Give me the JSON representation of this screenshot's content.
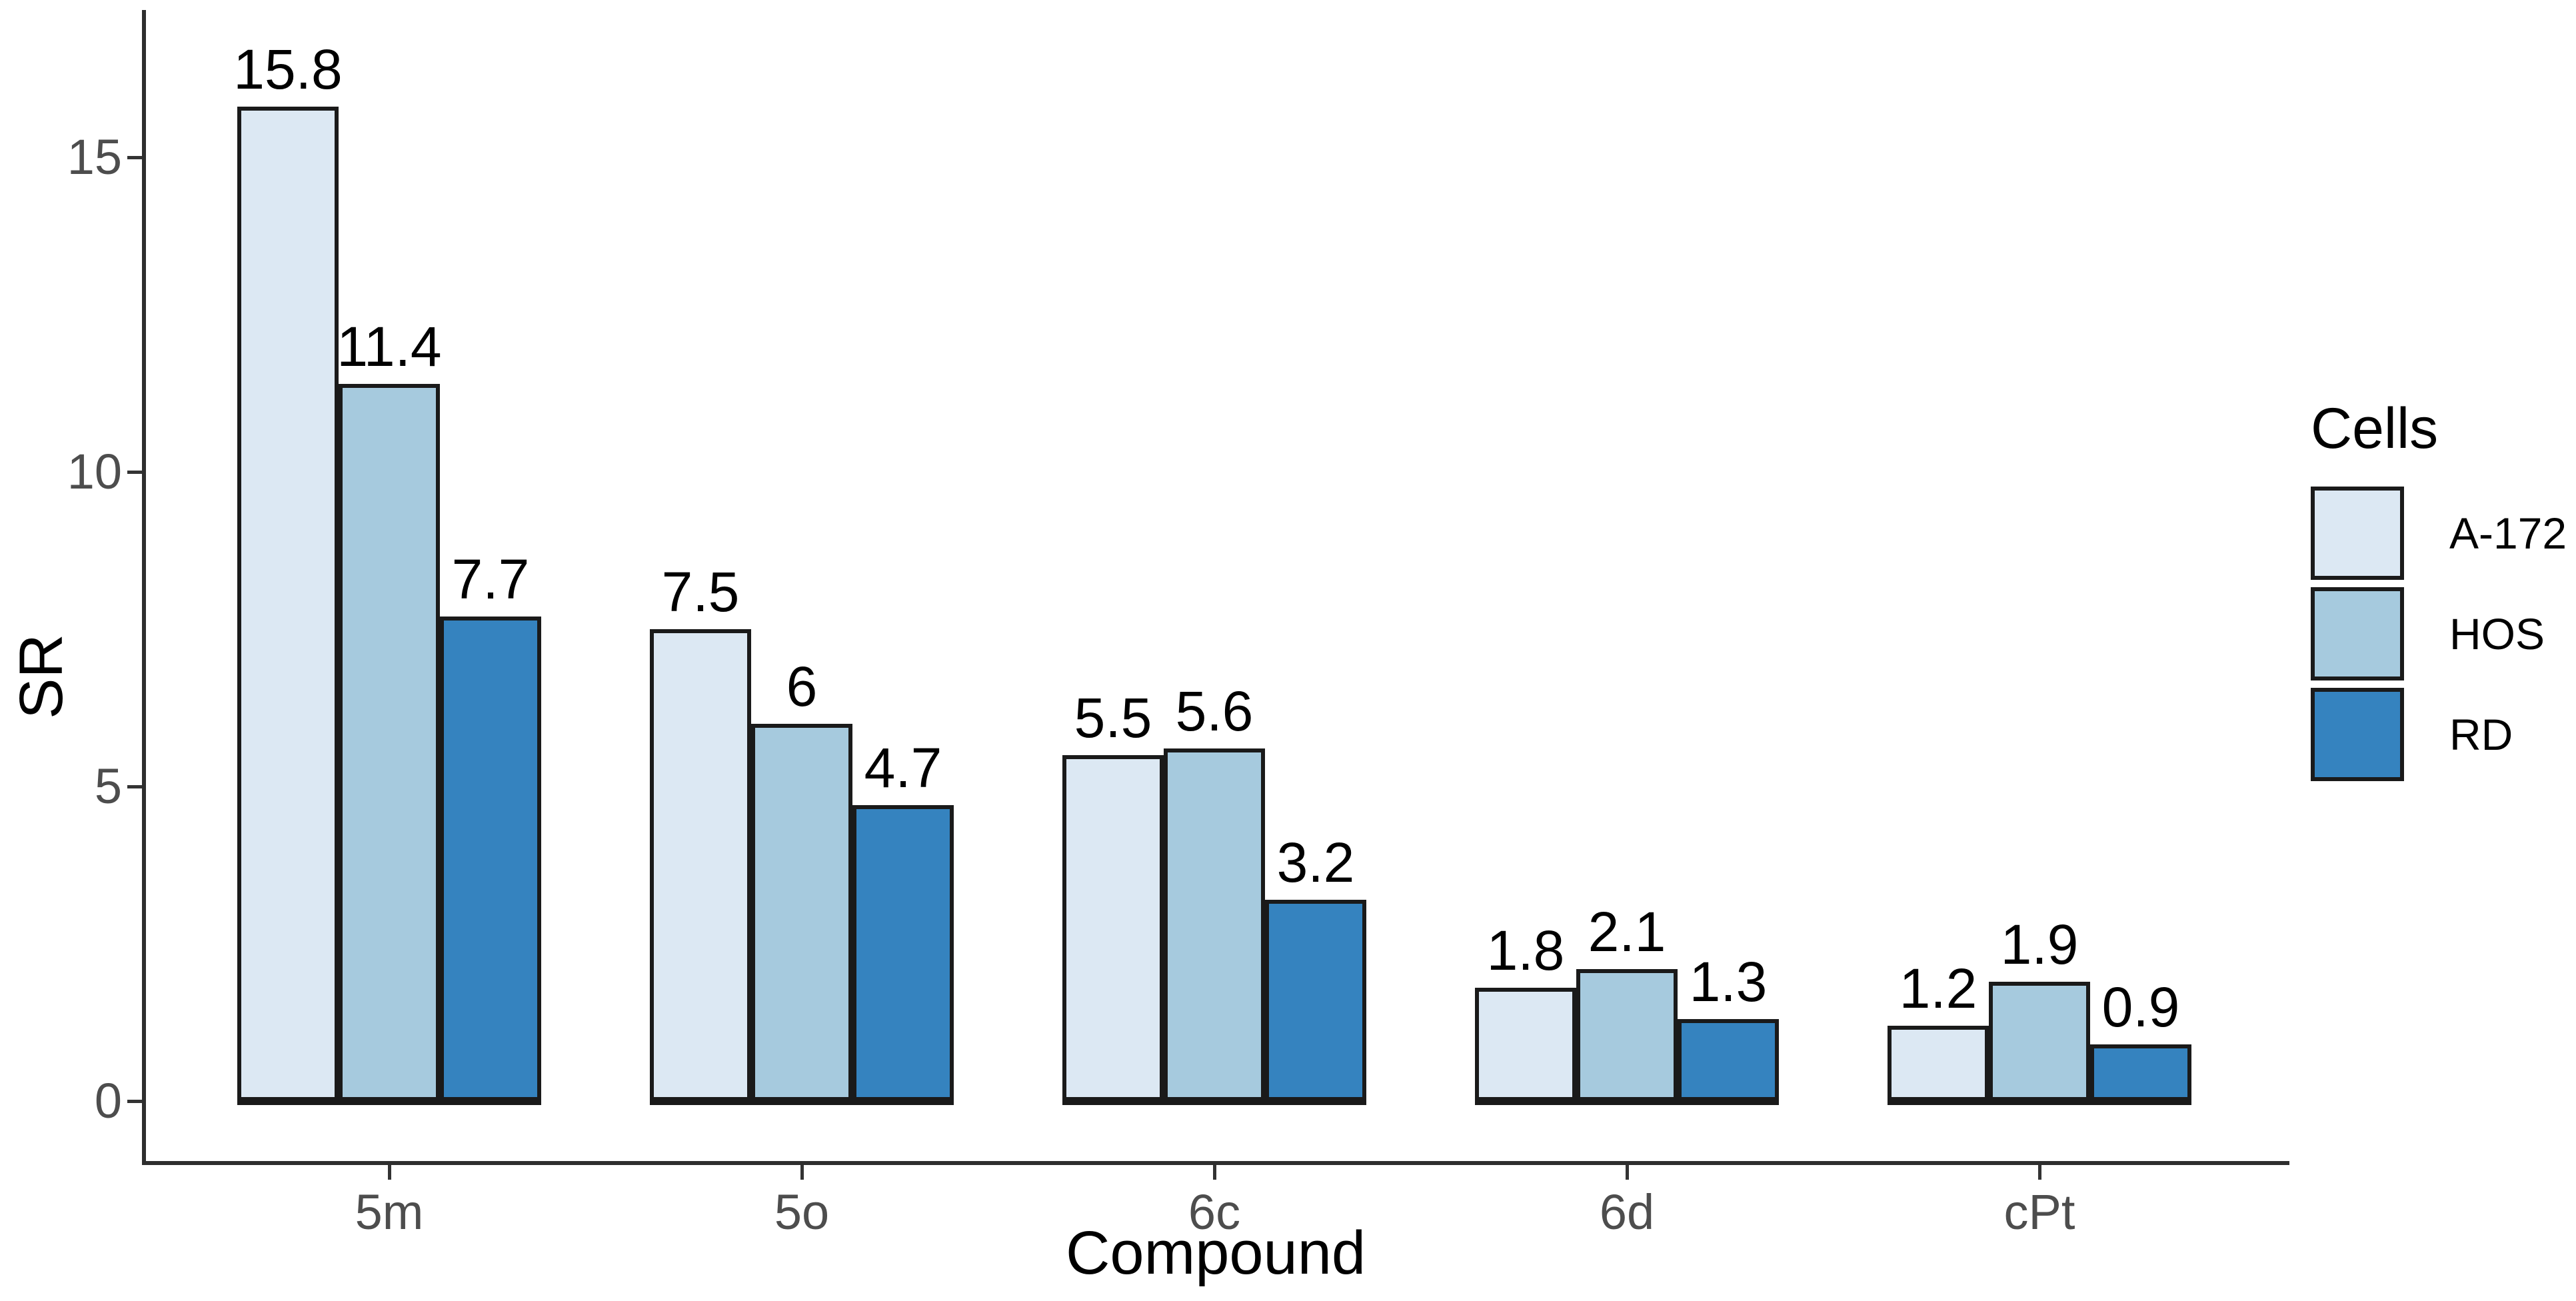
{
  "chart_data": {
    "type": "bar",
    "title": "",
    "categories": [
      "5m",
      "5o",
      "6c",
      "6d",
      "cPt"
    ],
    "series": [
      {
        "name": "A-172",
        "color": "#dce8f3",
        "values": [
          15.8,
          7.5,
          5.5,
          1.8,
          1.2
        ]
      },
      {
        "name": "HOS",
        "color": "#a6cade",
        "values": [
          11.4,
          6,
          5.6,
          2.1,
          1.9
        ]
      },
      {
        "name": "RD",
        "color": "#3583bf",
        "values": [
          7.7,
          4.7,
          3.2,
          1.3,
          0.9
        ]
      }
    ],
    "xlabel": "Compound",
    "ylabel": "SR",
    "yticks": [
      0,
      5,
      10,
      15
    ],
    "ylim": [
      0,
      17.3
    ],
    "grid": false,
    "legend_title": "Cells",
    "legend_position": "right",
    "bar_outline_color": "#1a1a1a",
    "axis_line_color": "#2e2e2e",
    "tick_text_color": "#4d4d4d",
    "value_label_color": "#000000",
    "background_color": "#ffffff"
  }
}
